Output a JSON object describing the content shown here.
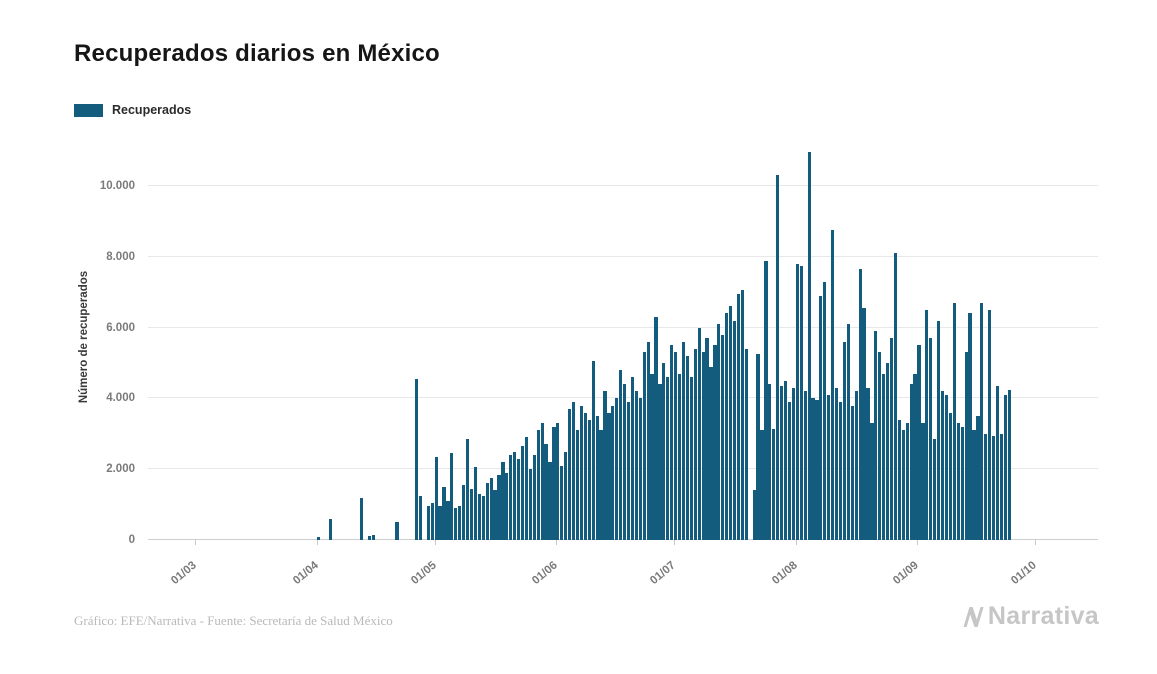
{
  "footer": {
    "source": "Gráfico: EFE/Narrativa - Fuente: Secretaría de Salud México",
    "brand": "Narrativa"
  },
  "chart_data": {
    "type": "bar",
    "title": "Recuperados diarios en México",
    "ylabel": "Número de recuperados",
    "xlabel": "",
    "grid": true,
    "legend_position": "top-left",
    "legend": [
      {
        "label": "Recuperados",
        "color": "#135c7e"
      }
    ],
    "ylim": [
      0,
      11300
    ],
    "yticks": [
      {
        "value": 0,
        "label": "0"
      },
      {
        "value": 2000,
        "label": "2.000"
      },
      {
        "value": 4000,
        "label": "4.000"
      },
      {
        "value": 6000,
        "label": "6.000"
      },
      {
        "value": 8000,
        "label": "8.000"
      },
      {
        "value": 10000,
        "label": "10.000"
      }
    ],
    "xticks": [
      "01/03",
      "01/04",
      "01/05",
      "01/06",
      "01/07",
      "01/08",
      "01/09",
      "01/10"
    ],
    "series": [
      {
        "name": "Recuperados",
        "daily": [
          {
            "month": "03",
            "values": [
              0,
              0,
              0,
              0,
              0,
              0,
              0,
              0,
              0,
              0,
              0,
              0,
              0,
              0,
              0,
              0,
              0,
              0,
              0,
              0,
              0,
              0,
              0,
              0,
              0,
              0,
              0,
              0,
              0,
              0,
              0
            ]
          },
          {
            "month": "04",
            "values": [
              75,
              0,
              0,
              600,
              0,
              0,
              0,
              0,
              0,
              0,
              0,
              1200,
              0,
              100,
              150,
              0,
              0,
              0,
              0,
              0,
              500,
              0,
              0,
              0,
              0,
              4550,
              1250,
              0,
              950,
              1050
            ]
          },
          {
            "month": "05",
            "values": [
              2350,
              950,
              1500,
              1100,
              2450,
              900,
              950,
              1550,
              2850,
              1450,
              2050,
              1300,
              1250,
              1600,
              1750,
              1400,
              1850,
              2200,
              1900,
              2400,
              2500,
              2300,
              2650,
              2900,
              2000,
              2400,
              3100,
              3300,
              2700,
              2200,
              3200
            ]
          },
          {
            "month": "06",
            "values": [
              3300,
              2100,
              2500,
              3700,
              3900,
              3100,
              3800,
              3600,
              3400,
              5050,
              3500,
              3100,
              4200,
              3600,
              3800,
              4000,
              4800,
              4400,
              3900,
              4600,
              4200,
              4000,
              5300,
              5600,
              4700,
              6300,
              4400,
              5000,
              4600,
              5500
            ]
          },
          {
            "month": "07",
            "values": [
              5300,
              4700,
              5600,
              5200,
              4600,
              5400,
              6000,
              5300,
              5700,
              4900,
              5500,
              6100,
              5800,
              6400,
              6600,
              6200,
              6950,
              7050,
              5400,
              0,
              1400,
              5250,
              3100,
              7870,
              4400,
              3150,
              10300,
              4350,
              4500,
              3900,
              4300
            ]
          },
          {
            "month": "08",
            "values": [
              7800,
              7750,
              4200,
              10950,
              4000,
              3950,
              6900,
              7300,
              4100,
              8750,
              4300,
              3900,
              5600,
              6100,
              3800,
              4200,
              7650,
              6550,
              4300,
              3300,
              5900,
              5300,
              4700,
              5000,
              5700,
              8100,
              3400,
              3100,
              3300,
              4400,
              4700
            ]
          },
          {
            "month": "09",
            "values": [
              5500,
              3300,
              6500,
              5700,
              2850,
              6200,
              4200,
              4100,
              3600,
              6700,
              3300,
              3200,
              5300,
              6400,
              3100,
              3500,
              6700,
              3000,
              6500,
              2950,
              4350,
              3000,
              4100,
              4250
            ]
          }
        ]
      }
    ]
  }
}
